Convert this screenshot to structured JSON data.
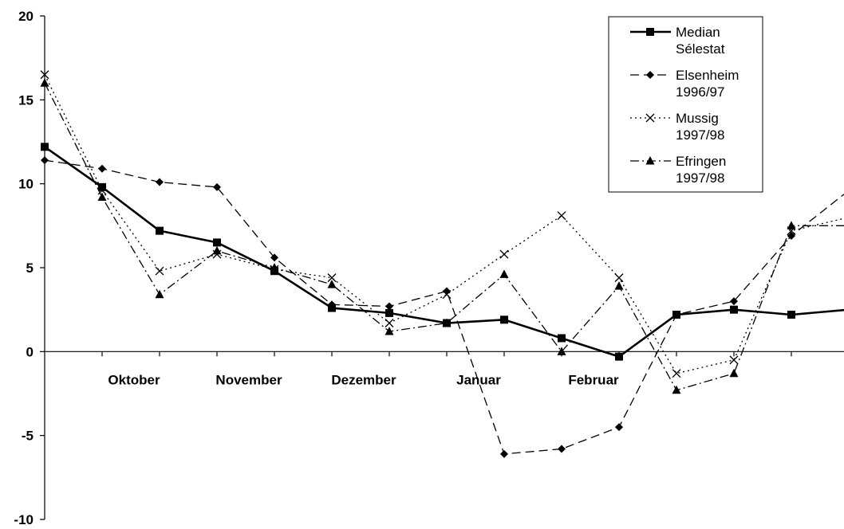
{
  "chart_data": {
    "type": "line",
    "title": "",
    "xlabel": "",
    "ylabel": "",
    "ylim": [
      -10,
      20
    ],
    "yticks": [
      -10,
      -5,
      0,
      5,
      10,
      15,
      20
    ],
    "x_points": 15,
    "month_labels": [
      {
        "label": "Oktober",
        "at": 2
      },
      {
        "label": "November",
        "at": 4
      },
      {
        "label": "Dezember",
        "at": 6
      },
      {
        "label": "Januar",
        "at": 8
      },
      {
        "label": "Februar",
        "at": 10
      }
    ],
    "grid": false,
    "legend_position": "top-right",
    "series": [
      {
        "name": "Median Sélestat",
        "name_lines": [
          "Median",
          "Sélestat"
        ],
        "style": "solid",
        "marker": "square",
        "color": "#000000",
        "values": [
          12.2,
          9.8,
          7.2,
          6.5,
          4.8,
          2.6,
          2.3,
          1.7,
          1.9,
          0.8,
          -0.3,
          2.2,
          2.5,
          2.2,
          2.5
        ]
      },
      {
        "name": "Elsenheim 1996/97",
        "name_lines": [
          "Elsenheim",
          "1996/97"
        ],
        "style": "dashed",
        "marker": "diamond",
        "color": "#000000",
        "values": [
          11.4,
          10.9,
          10.1,
          9.8,
          5.6,
          2.8,
          2.7,
          3.6,
          -6.1,
          -5.8,
          -4.5,
          2.2,
          3.0,
          6.9,
          9.6
        ]
      },
      {
        "name": "Mussig 1997/98",
        "name_lines": [
          "Mussig",
          "1997/98"
        ],
        "style": "dotted",
        "marker": "x",
        "color": "#000000",
        "values": [
          16.5,
          9.6,
          4.8,
          5.8,
          4.9,
          4.4,
          1.7,
          3.4,
          5.8,
          8.1,
          4.4,
          -1.3,
          -0.5,
          7.2,
          8.0
        ]
      },
      {
        "name": "Efringen 1997/98",
        "name_lines": [
          "Efringen",
          "1997/98"
        ],
        "style": "dashdot",
        "marker": "triangle",
        "color": "#000000",
        "values": [
          16.0,
          9.2,
          3.4,
          6.0,
          5.0,
          4.0,
          1.2,
          1.7,
          4.6,
          0.0,
          3.9,
          -2.3,
          -1.3,
          7.5,
          7.5
        ]
      }
    ]
  }
}
